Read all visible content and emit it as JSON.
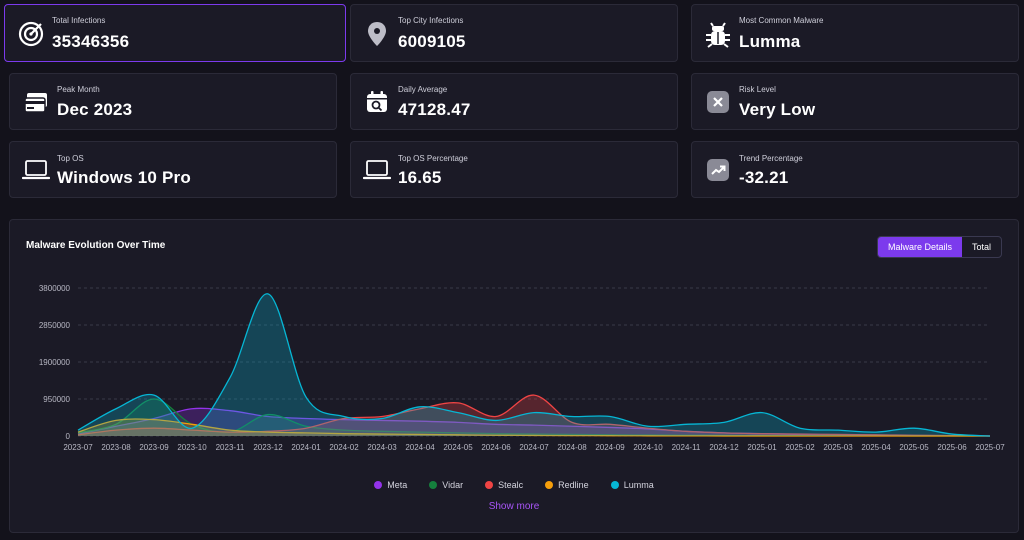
{
  "stats": {
    "total_infections": {
      "label": "Total Infections",
      "value": "35346356",
      "icon": "target-icon"
    },
    "top_city": {
      "label": "Top City Infections",
      "value": "6009105",
      "icon": "map-pin-icon"
    },
    "common_malware": {
      "label": "Most Common Malware",
      "value": "Lumma",
      "icon": "bug-icon"
    },
    "peak_month": {
      "label": "Peak Month",
      "value": "Dec 2023",
      "icon": "cards-icon"
    },
    "daily_average": {
      "label": "Daily Average",
      "value": "47128.47",
      "icon": "calendar-search-icon"
    },
    "risk_level": {
      "label": "Risk Level",
      "value": "Very Low",
      "icon": "x-square-icon"
    },
    "top_os": {
      "label": "Top OS",
      "value": "Windows 10 Pro",
      "icon": "laptop-icon"
    },
    "top_os_percentage": {
      "label": "Top OS Percentage",
      "value": "16.65",
      "icon": "laptop-icon"
    },
    "trend_percentage": {
      "label": "Trend Percentage",
      "value": "-32.21",
      "icon": "trend-up-icon"
    }
  },
  "chart_section": {
    "title": "Malware Evolution Over Time",
    "toggle": [
      "Malware Details",
      "Total"
    ],
    "show_more": "Show more"
  },
  "colors": {
    "accent": "#7c3aed",
    "Meta": "#9333ea",
    "Vidar": "#15803d",
    "Stealc": "#ef4444",
    "Redline": "#f59e0b",
    "Lumma": "#06b6d4"
  },
  "chart_data": {
    "type": "area",
    "title": "Malware Evolution Over Time",
    "x": [
      "2023-07",
      "2023-08",
      "2023-09",
      "2023-10",
      "2023-11",
      "2023-12",
      "2024-01",
      "2024-02",
      "2024-03",
      "2024-04",
      "2024-05",
      "2024-06",
      "2024-07",
      "2024-08",
      "2024-09",
      "2024-10",
      "2024-11",
      "2024-12",
      "2025-01",
      "2025-02",
      "2025-03",
      "2025-04",
      "2025-05",
      "2025-06",
      "2025-07"
    ],
    "y_ticks": [
      "0",
      "950000",
      "1900000",
      "2850000",
      "3800000"
    ],
    "ylim": [
      0,
      3800000
    ],
    "grid": true,
    "legend": "bottom",
    "series": [
      {
        "name": "Meta",
        "values": [
          50000,
          250000,
          450000,
          700000,
          650000,
          500000,
          450000,
          420000,
          400000,
          380000,
          350000,
          300000,
          280000,
          250000,
          220000,
          180000,
          120000,
          80000,
          60000,
          40000,
          30000,
          20000,
          10000,
          5000,
          0
        ]
      },
      {
        "name": "Vidar",
        "values": [
          80000,
          300000,
          950000,
          300000,
          100000,
          550000,
          250000,
          150000,
          120000,
          100000,
          80000,
          60000,
          50000,
          40000,
          30000,
          25000,
          20000,
          15000,
          10000,
          8000,
          5000,
          3000,
          2000,
          1000,
          0
        ]
      },
      {
        "name": "Stealc",
        "values": [
          30000,
          150000,
          200000,
          150000,
          100000,
          120000,
          200000,
          450000,
          500000,
          700000,
          850000,
          500000,
          1050000,
          350000,
          300000,
          200000,
          120000,
          80000,
          60000,
          50000,
          40000,
          30000,
          20000,
          10000,
          0
        ]
      },
      {
        "name": "Redline",
        "values": [
          100000,
          400000,
          420000,
          300000,
          150000,
          100000,
          80000,
          60000,
          50000,
          40000,
          30000,
          20000,
          15000,
          10000,
          8000,
          5000,
          3000,
          2000,
          1000,
          500,
          0,
          0,
          0,
          0,
          0
        ]
      },
      {
        "name": "Lumma",
        "values": [
          150000,
          700000,
          1050000,
          200000,
          1500000,
          3650000,
          1000000,
          500000,
          450000,
          750000,
          600000,
          400000,
          600000,
          500000,
          500000,
          250000,
          300000,
          350000,
          600000,
          200000,
          150000,
          100000,
          200000,
          50000,
          0
        ]
      }
    ]
  }
}
